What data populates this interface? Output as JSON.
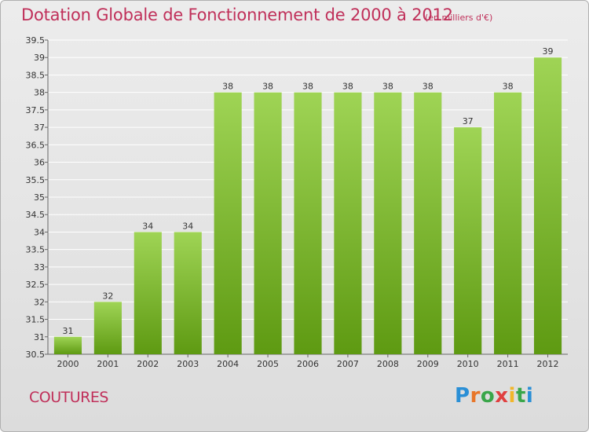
{
  "title": "Dotation Globale de Fonctionnement de 2000 à 2012",
  "unit": "(en milliers d'€)",
  "place": "COUTURES",
  "logo": "Proxiti",
  "colors": {
    "accent": "#c0305a",
    "bar_top": "#9fd455",
    "bar_bottom": "#5e9a12"
  },
  "chart_data": {
    "type": "bar",
    "title": "Dotation Globale de Fonctionnement de 2000 à 2012",
    "xlabel": "",
    "ylabel": "",
    "categories": [
      "2000",
      "2001",
      "2002",
      "2003",
      "2004",
      "2005",
      "2006",
      "2007",
      "2008",
      "2009",
      "2010",
      "2011",
      "2012"
    ],
    "values": [
      31,
      32,
      34,
      34,
      38,
      38,
      38,
      38,
      38,
      38,
      37,
      38,
      39
    ],
    "ylim": [
      30.5,
      39.5
    ],
    "yticks": [
      "30.5",
      "31",
      "31.5",
      "32",
      "32.5",
      "33",
      "33.5",
      "34",
      "34.5",
      "35",
      "35.5",
      "36",
      "36.5",
      "37",
      "37.5",
      "38",
      "38.5",
      "39",
      "39.5"
    ],
    "grid": true
  }
}
